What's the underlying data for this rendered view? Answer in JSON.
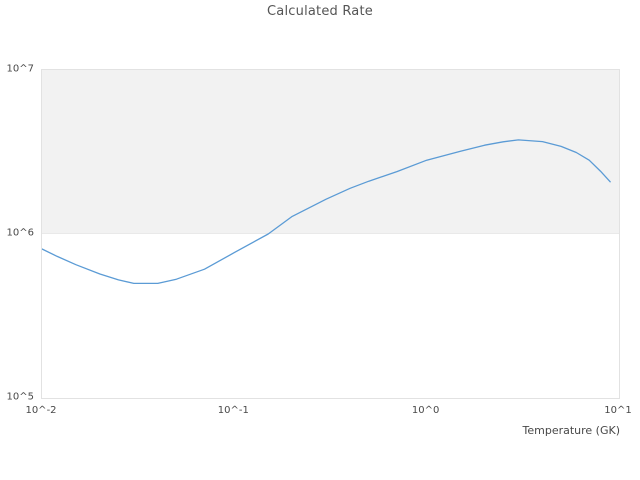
{
  "title": "Calculated Rate",
  "x_axis": {
    "label": "Temperature (GK)",
    "tick_labels": [
      "10^-2",
      "10^-1",
      "10^0",
      "10^1"
    ],
    "tick_values": [
      0.01,
      0.1,
      1,
      10
    ]
  },
  "y_axis": {
    "label": "",
    "tick_labels": [
      "10^7",
      "10^6",
      "10^5"
    ],
    "tick_values": [
      10000000,
      1000000,
      100000
    ]
  },
  "colors": {
    "line": "#5b9bd5",
    "band_fill": "#f2f2f2",
    "plot_border": "#e2e2e2",
    "text": "#484848",
    "title_text": "#555555",
    "background": "#ffffff"
  },
  "chart_data": {
    "type": "line",
    "title": "Calculated Rate",
    "xlabel": "Temperature (GK)",
    "ylabel": "",
    "x_scale": "log",
    "y_scale": "log",
    "xlim": [
      0.01,
      10
    ],
    "ylim": [
      100000,
      10000000
    ],
    "grid": "off",
    "legend": false,
    "shaded_band": {
      "y_from": 1000000,
      "y_to": 10000000
    },
    "series": [
      {
        "name": "Calculated Rate",
        "x": [
          0.01,
          0.012,
          0.015,
          0.02,
          0.025,
          0.03,
          0.04,
          0.05,
          0.07,
          0.1,
          0.15,
          0.2,
          0.3,
          0.4,
          0.5,
          0.7,
          1.0,
          1.5,
          2.0,
          2.5,
          3.0,
          4.0,
          5.0,
          6.0,
          7.0,
          8.0,
          9.0
        ],
        "y": [
          810000,
          730000,
          650000,
          570000,
          525000,
          500000,
          500000,
          530000,
          610000,
          770000,
          1000000,
          1280000,
          1630000,
          1900000,
          2100000,
          2400000,
          2820000,
          3200000,
          3480000,
          3650000,
          3750000,
          3660000,
          3420000,
          3140000,
          2820000,
          2420000,
          2080000
        ]
      }
    ]
  }
}
